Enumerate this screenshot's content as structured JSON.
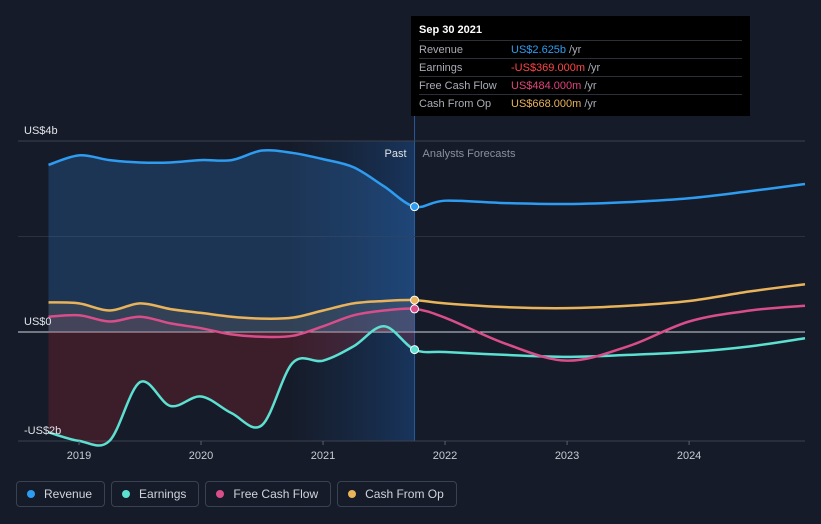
{
  "tooltip": {
    "date": "Sep 30 2021",
    "rows": [
      {
        "label": "Revenue",
        "value": "US$2.625b",
        "unit": "/yr",
        "color": "#2e9cf0"
      },
      {
        "label": "Earnings",
        "value": "-US$369.000m",
        "unit": "/yr",
        "color": "#ff4545"
      },
      {
        "label": "Free Cash Flow",
        "value": "US$484.000m",
        "unit": "/yr",
        "color": "#e0457b"
      },
      {
        "label": "Cash From Op",
        "value": "US$668.000m",
        "unit": "/yr",
        "color": "#e8b35a"
      }
    ]
  },
  "legend": [
    {
      "label": "Revenue",
      "color": "#2e9cf0"
    },
    {
      "label": "Earnings",
      "color": "#5ce0d2"
    },
    {
      "label": "Free Cash Flow",
      "color": "#d94e8a"
    },
    {
      "label": "Cash From Op",
      "color": "#e8b35a"
    }
  ],
  "chart_data": {
    "type": "line",
    "y_tick_labels": [
      "US$4b",
      "US$0",
      "-US$2b"
    ],
    "x_tick_labels": [
      "2019",
      "2020",
      "2021",
      "2022",
      "2023",
      "2024"
    ],
    "x_ticks": [
      2019.0,
      2020.0,
      2021.0,
      2022.0,
      2023.0,
      2024.0
    ],
    "xlim": [
      2018.5,
      2024.95
    ],
    "ylim": [
      -2.3,
      4.0
    ],
    "past_label": "Past",
    "forecast_label": "Analysts Forecasts",
    "past_end": 2021.75,
    "grid": true,
    "series": [
      {
        "name": "Revenue",
        "color": "#2e9cf0",
        "x": [
          2018.75,
          2019.0,
          2019.25,
          2019.5,
          2019.75,
          2020.0,
          2020.25,
          2020.5,
          2020.75,
          2021.0,
          2021.25,
          2021.5,
          2021.75,
          2022.0,
          2022.5,
          2023.0,
          2023.5,
          2024.0,
          2024.5,
          2024.95
        ],
        "y": [
          3.5,
          3.7,
          3.6,
          3.55,
          3.55,
          3.6,
          3.6,
          3.8,
          3.75,
          3.62,
          3.45,
          3.05,
          2.625,
          2.75,
          2.7,
          2.68,
          2.72,
          2.8,
          2.95,
          3.1
        ]
      },
      {
        "name": "Earnings",
        "color": "#5ce0d2",
        "x": [
          2018.75,
          2019.0,
          2019.25,
          2019.5,
          2019.75,
          2020.0,
          2020.25,
          2020.5,
          2020.75,
          2021.0,
          2021.25,
          2021.5,
          2021.75,
          2022.0,
          2022.5,
          2023.0,
          2023.5,
          2024.0,
          2024.5,
          2024.95
        ],
        "y": [
          -2.1,
          -2.28,
          -2.28,
          -1.05,
          -1.55,
          -1.35,
          -1.7,
          -1.95,
          -0.65,
          -0.6,
          -0.3,
          0.12,
          -0.369,
          -0.42,
          -0.48,
          -0.52,
          -0.48,
          -0.42,
          -0.3,
          -0.13
        ]
      },
      {
        "name": "Free Cash Flow",
        "color": "#d94e8a",
        "x": [
          2018.75,
          2019.0,
          2019.25,
          2019.5,
          2019.75,
          2020.0,
          2020.25,
          2020.5,
          2020.75,
          2021.0,
          2021.25,
          2021.5,
          2021.75,
          2022.0,
          2022.5,
          2023.0,
          2023.5,
          2024.0,
          2024.5,
          2024.95
        ],
        "y": [
          0.32,
          0.35,
          0.22,
          0.32,
          0.18,
          0.08,
          -0.05,
          -0.1,
          -0.08,
          0.12,
          0.35,
          0.45,
          0.484,
          0.3,
          -0.25,
          -0.6,
          -0.3,
          0.22,
          0.45,
          0.55
        ]
      },
      {
        "name": "Cash From Op",
        "color": "#e8b35a",
        "x": [
          2018.75,
          2019.0,
          2019.25,
          2019.5,
          2019.75,
          2020.0,
          2020.25,
          2020.5,
          2020.75,
          2021.0,
          2021.25,
          2021.5,
          2021.75,
          2022.0,
          2022.5,
          2023.0,
          2023.5,
          2024.0,
          2024.5,
          2024.95
        ],
        "y": [
          0.62,
          0.6,
          0.45,
          0.6,
          0.48,
          0.4,
          0.32,
          0.28,
          0.3,
          0.45,
          0.6,
          0.65,
          0.668,
          0.6,
          0.52,
          0.5,
          0.55,
          0.65,
          0.85,
          1.0
        ]
      }
    ]
  }
}
